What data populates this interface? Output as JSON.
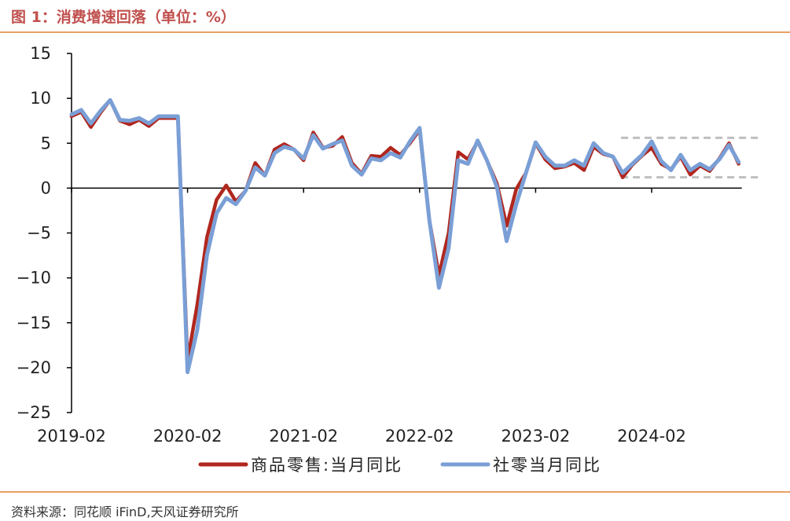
{
  "figure": {
    "title": "图 1：消费增速回落（单位：%）",
    "source": "资料来源：同花顺 iFinD,天风证券研究所"
  },
  "colors": {
    "series_1": "#b0271e",
    "series_2": "#7a9fd6",
    "dashed_box": "#bfbfbf",
    "axis": "#000000",
    "rule": "#e8a063",
    "title": "#c0504d"
  },
  "chart_data": {
    "type": "line",
    "title": "消费增速回落（单位：%）",
    "xlabel": "",
    "ylabel": "",
    "ylim": [
      -25,
      15
    ],
    "y_ticks": [
      15,
      10,
      5,
      0,
      -5,
      -10,
      -15,
      -20,
      -25
    ],
    "y_tick_labels": [
      "15",
      "10",
      "5",
      "0",
      "−5",
      "−10",
      "−15",
      "−20",
      "−25"
    ],
    "x_start": "2019-02",
    "x_tick_labels": [
      "2019-02",
      "2020-02",
      "2021-02",
      "2022-02",
      "2023-02",
      "2024-02"
    ],
    "grid": false,
    "legend": "bottom",
    "highlight_band": {
      "x_from": "2023-11",
      "x_to": "2024-12",
      "y_from": 1.2,
      "y_to": 5.6
    },
    "series": [
      {
        "name": "商品零售:当月同比",
        "values": [
          8.0,
          8.5,
          6.8,
          8.4,
          9.8,
          7.5,
          7.1,
          7.6,
          6.9,
          7.8,
          7.8,
          7.8,
          -19.2,
          -13.0,
          -5.5,
          -1.3,
          0.3,
          -1.5,
          -0.3,
          2.8,
          1.4,
          4.3,
          4.9,
          4.3,
          3.1,
          6.2,
          4.5,
          4.7,
          5.7,
          2.8,
          1.6,
          3.6,
          3.5,
          4.5,
          3.7,
          5.0,
          6.5,
          -3.5,
          -9.7,
          -5.0,
          4.0,
          3.2,
          5.2,
          3.0,
          0.5,
          -4.2,
          -0.1,
          1.7,
          5.0,
          3.2,
          2.2,
          2.4,
          2.8,
          2.0,
          4.6,
          3.8,
          3.5,
          1.2,
          2.6,
          3.6,
          4.5,
          2.7,
          2.1,
          3.5,
          1.5,
          2.5,
          1.9,
          3.3,
          5.0,
          2.7
        ]
      },
      {
        "name": "社零当月同比",
        "values": [
          8.2,
          8.7,
          7.2,
          8.6,
          9.8,
          7.6,
          7.5,
          7.8,
          7.2,
          8.0,
          8.0,
          8.0,
          -20.5,
          -15.8,
          -7.5,
          -2.8,
          -1.1,
          -1.8,
          -0.3,
          2.3,
          1.4,
          3.9,
          4.6,
          4.3,
          3.3,
          5.9,
          4.4,
          4.9,
          5.3,
          2.5,
          1.5,
          3.3,
          3.1,
          3.9,
          3.4,
          5.2,
          6.7,
          -3.5,
          -11.1,
          -6.7,
          3.1,
          2.7,
          5.3,
          3.0,
          0.1,
          -5.9,
          -1.8,
          1.7,
          5.1,
          3.5,
          2.5,
          2.5,
          3.1,
          2.5,
          5.0,
          3.9,
          3.5,
          1.7,
          2.7,
          3.7,
          5.2,
          3.0,
          2.0,
          3.7,
          2.0,
          2.7,
          2.1,
          3.2,
          4.8,
          2.9
        ]
      }
    ]
  }
}
